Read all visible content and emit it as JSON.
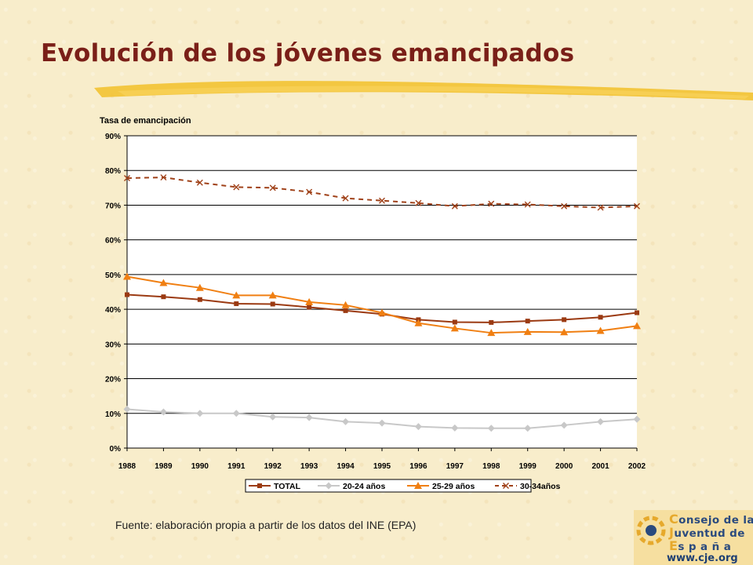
{
  "title": "Evolución de los jóvenes emancipados",
  "source_note": "Fuente: elaboración propia a partir de los datos del INE (EPA)",
  "logo": {
    "lines": [
      {
        "first": "C",
        "rest": "onsejo de la"
      },
      {
        "first": "J",
        "rest": "uventud de"
      },
      {
        "first": "E",
        "rest": "s p a ñ a"
      }
    ],
    "url": "www.cje.org"
  },
  "colors": {
    "title": "#7a1f18",
    "brush": "#f2c029",
    "total": "#9b3a12",
    "age_20_24": "#c8c8c8",
    "age_25_29": "#f07f12",
    "age_30_34": "#a0421a"
  },
  "chart_data": {
    "type": "line",
    "ylabel": "Tasa de emancipación",
    "xlabel": "",
    "ylim": [
      0,
      90
    ],
    "yticks": [
      0,
      10,
      20,
      30,
      40,
      50,
      60,
      70,
      80,
      90
    ],
    "ytick_labels": [
      "0%",
      "10%",
      "20%",
      "30%",
      "40%",
      "50%",
      "60%",
      "70%",
      "80%",
      "90%"
    ],
    "grid": "horizontal",
    "legend_position": "bottom",
    "categories": [
      "1988",
      "1989",
      "1990",
      "1991",
      "1992",
      "1993",
      "1994",
      "1995",
      "1996",
      "1997",
      "1998",
      "1999",
      "2000",
      "2001",
      "2002"
    ],
    "series": [
      {
        "name": "TOTAL",
        "color": "#9b3a12",
        "marker": "square",
        "dash": "solid",
        "values": [
          44.2,
          43.6,
          42.8,
          41.6,
          41.5,
          40.6,
          39.6,
          38.6,
          37.0,
          36.3,
          36.2,
          36.6,
          37.0,
          37.7,
          39.0
        ]
      },
      {
        "name": "20-24 años",
        "color": "#c8c8c8",
        "marker": "diamond",
        "dash": "solid",
        "values": [
          11.2,
          10.4,
          10.0,
          10.0,
          9.0,
          8.8,
          7.6,
          7.2,
          6.2,
          5.8,
          5.7,
          5.7,
          6.6,
          7.6,
          8.3
        ]
      },
      {
        "name": "25-29 años",
        "color": "#f07f12",
        "marker": "triangle",
        "dash": "solid",
        "values": [
          49.4,
          47.6,
          46.2,
          44.0,
          44.0,
          42.1,
          41.2,
          39.0,
          36.0,
          34.5,
          33.2,
          33.5,
          33.4,
          33.8,
          35.2
        ]
      },
      {
        "name": "30-34años",
        "color": "#a0421a",
        "marker": "x",
        "dash": "dashed",
        "values": [
          77.8,
          78.0,
          76.5,
          75.2,
          75.0,
          73.8,
          72.0,
          71.3,
          70.6,
          69.7,
          70.4,
          70.2,
          69.7,
          69.3,
          69.7
        ]
      }
    ]
  }
}
